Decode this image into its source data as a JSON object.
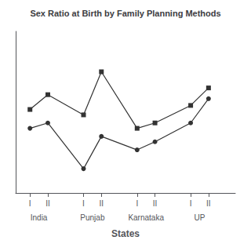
{
  "chart_data": {
    "type": "line",
    "title": "Sex Ratio at Birth by Family Planning Methods",
    "xlabel": "States",
    "x": [
      1,
      2,
      4,
      5,
      7,
      8,
      10,
      11
    ],
    "series": [
      {
        "values": [
          952,
          963,
          948,
          980,
          938,
          942,
          955,
          968
        ],
        "marker": "square",
        "color": "#333333"
      },
      {
        "values": [
          938,
          942,
          908,
          932,
          922,
          928,
          942,
          960
        ],
        "marker": "circle",
        "color": "#333333"
      }
    ],
    "xlim": [
      0.2,
      12.5
    ],
    "xticks": [
      {
        "value": 1,
        "label": "I"
      },
      {
        "value": 2,
        "label": "II"
      },
      {
        "value": 4,
        "label": "I"
      },
      {
        "value": 5,
        "label": "II"
      },
      {
        "value": 7,
        "label": "I"
      },
      {
        "value": 8,
        "label": "II"
      },
      {
        "value": 10,
        "label": "I"
      },
      {
        "value": 11,
        "label": "II"
      }
    ],
    "ylim": [
      890,
      1010
    ],
    "tick_labels": "x",
    "grid": false,
    "annotations": [
      {
        "text": "India",
        "x": 1.5
      },
      {
        "text": "Punjab",
        "x": 4.5
      },
      {
        "text": "Karnataka",
        "x": 7.5
      },
      {
        "text": "UP",
        "x": 10.5
      }
    ]
  }
}
